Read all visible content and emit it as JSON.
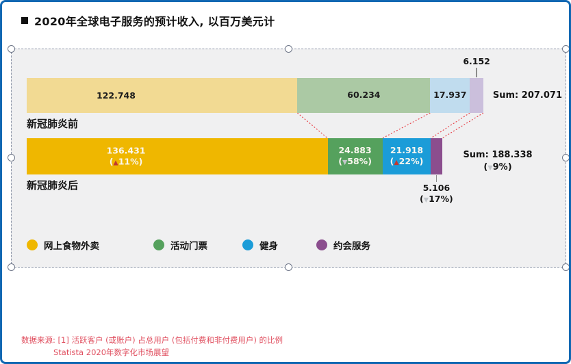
{
  "title": {
    "text": "2020年全球电子服务的预计收入, 以百万美元计"
  },
  "colors": {
    "frame_blue": "#1268B3",
    "selection_border": "#8A93A6",
    "canvas_background": "#F0F0F1",
    "connector_red": "#E8484F",
    "triangle_up_red": "#C23830",
    "triangle_down_gray": "#C3C7CB",
    "footnote_red": "#E04F5F",
    "leader_line_gray": "#8C8C8C"
  },
  "chart_data": {
    "type": "bar",
    "subtype": "stacked-horizontal",
    "title": "2020年全球电子服务的预计收入, 以百万美元计",
    "value_unit": "million USD",
    "categories": [
      "网上食物外卖",
      "活动门票",
      "健身",
      "约会服务"
    ],
    "palette_pre": [
      "#F2DA93",
      "#ABC9A4",
      "#C0DCEE",
      "#CBBFDC"
    ],
    "palette_post": [
      "#EFB700",
      "#55A15D",
      "#1B9CD8",
      "#8B4E8E"
    ],
    "rows": [
      {
        "id": "pre",
        "label": "新冠肺炎前",
        "sum": 207.071,
        "sum_label": "Sum: 207.071",
        "segments": [
          {
            "category": "网上食物外卖",
            "value": 122.748,
            "label": "122.748"
          },
          {
            "category": "活动门票",
            "value": 60.234,
            "label": "60.234"
          },
          {
            "category": "健身",
            "value": 17.937,
            "label": "17.937"
          },
          {
            "category": "约会服务",
            "value": 6.152,
            "label": "6.152",
            "label_outside": "above"
          }
        ]
      },
      {
        "id": "post",
        "label": "新冠肺炎后",
        "sum": 188.338,
        "sum_label": "Sum: 188.338",
        "sum_change": {
          "dir": "down",
          "text": "9%"
        },
        "segments": [
          {
            "category": "网上食物外卖",
            "value": 136.431,
            "label": "136.431",
            "change": {
              "dir": "up",
              "text": "11%"
            }
          },
          {
            "category": "活动门票",
            "value": 24.883,
            "label": "24.883",
            "change": {
              "dir": "down",
              "text": "58%"
            }
          },
          {
            "category": "健身",
            "value": 21.918,
            "label": "21.918",
            "change": {
              "dir": "up",
              "text": "22%"
            }
          },
          {
            "category": "约会服务",
            "value": 5.106,
            "label": "5.106",
            "change": {
              "dir": "down",
              "text": "17%"
            },
            "label_outside": "below"
          }
        ]
      }
    ]
  },
  "legend": {
    "items": [
      {
        "label": "网上食物外卖",
        "color": "#EFB700"
      },
      {
        "label": "活动门票",
        "color": "#55A15D"
      },
      {
        "label": "健身",
        "color": "#1B9CD8"
      },
      {
        "label": "约会服务",
        "color": "#8B4E8E"
      }
    ]
  },
  "footnote": {
    "line1": "数据来源: [1] 活跃客户 (或账户) 占总用户 (包括付费和非付费用户) 的比例",
    "line2": "Statista 2020年数字化市场展望"
  }
}
